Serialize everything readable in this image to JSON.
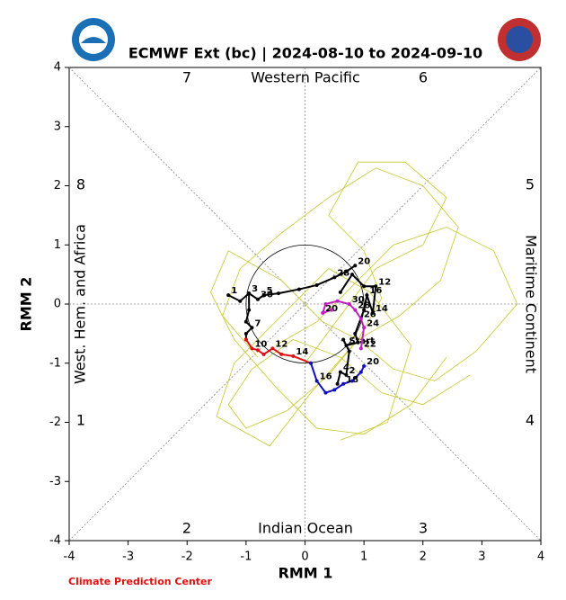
{
  "chart_data": {
    "type": "line",
    "title": "ECMWF Ext (bc) | 2024-08-10 to 2024-09-10",
    "x_label": "RMM 1",
    "y_label": "RMM 2",
    "xlim": [
      -4,
      4
    ],
    "ylim": [
      -4,
      4
    ],
    "xticks": [
      -4,
      -3,
      -2,
      -1,
      0,
      1,
      2,
      3,
      4
    ],
    "yticks": [
      -4,
      -3,
      -2,
      -1,
      0,
      1,
      2,
      3,
      4
    ],
    "phases": [
      "1",
      "2",
      "3",
      "4",
      "5",
      "6",
      "7",
      "8"
    ],
    "regions": [
      "Western Pacific",
      "Indian Ocean",
      "West. Hem. and Africa",
      "Maritime Continent"
    ],
    "credit": "Climate Prediction Center",
    "series": [
      {
        "color": "#c8c828",
        "x": [
          0.9,
          1.6,
          2.3,
          2.6,
          2.0,
          1.2,
          0.4,
          -0.4,
          -1.1,
          -1.4,
          -0.8
        ],
        "values": [
          -0.6,
          -0.2,
          0.4,
          1.3,
          2.0,
          2.3,
          1.8,
          1.2,
          0.6,
          -0.2,
          -0.9
        ],
        "labels": [
          null,
          null,
          null,
          null,
          null,
          null,
          null,
          null,
          null,
          null,
          null
        ]
      },
      {
        "color": "#c8c828",
        "x": [
          0.9,
          0.4,
          -0.3,
          -1.0,
          -1.3,
          -0.9,
          -0.2,
          0.6,
          1.3,
          2.0,
          2.8
        ],
        "values": [
          -0.6,
          -1.2,
          -1.8,
          -2.1,
          -1.7,
          -1.1,
          -0.6,
          -0.9,
          -1.5,
          -1.7,
          -1.2
        ],
        "labels": [
          null,
          null,
          null,
          null,
          null,
          null,
          null,
          null,
          null,
          null,
          null
        ]
      },
      {
        "color": "#c8c828",
        "x": [
          0.9,
          1.5,
          2.2,
          2.9,
          3.6,
          3.2,
          2.4,
          1.5,
          0.8,
          0.2,
          -0.5
        ],
        "values": [
          -0.6,
          -1.1,
          -1.3,
          -0.8,
          0.0,
          0.9,
          1.3,
          1.0,
          0.3,
          -0.3,
          -0.7
        ],
        "labels": [
          null,
          null,
          null,
          null,
          null,
          null,
          null,
          null,
          null,
          null,
          null
        ]
      },
      {
        "color": "#c8c828",
        "x": [
          0.9,
          0.3,
          -0.4,
          -1.3,
          -1.6,
          -1.2,
          -0.5,
          0.2,
          1.0,
          1.8,
          2.4
        ],
        "values": [
          -0.6,
          -0.3,
          0.4,
          0.9,
          0.2,
          -0.6,
          -1.4,
          -2.1,
          -2.2,
          -1.7,
          -0.9
        ],
        "labels": [
          null,
          null,
          null,
          null,
          null,
          null,
          null,
          null,
          null,
          null,
          null
        ]
      },
      {
        "color": "#c8c828",
        "x": [
          0.9,
          1.3,
          1.0,
          0.4,
          0.9,
          1.7,
          2.4,
          2.0,
          1.2,
          0.6,
          0.0
        ],
        "values": [
          -0.6,
          0.1,
          0.9,
          1.5,
          2.4,
          2.4,
          1.8,
          1.0,
          0.6,
          -0.2,
          -1.0
        ],
        "labels": [
          null,
          null,
          null,
          null,
          null,
          null,
          null,
          null,
          null,
          null,
          null
        ]
      },
      {
        "color": "#c8c828",
        "x": [
          0.9,
          0.1,
          -0.6,
          -1.5,
          -1.2,
          -0.4,
          0.4,
          1.1,
          1.8,
          1.4,
          0.6
        ],
        "values": [
          -0.6,
          -1.5,
          -2.4,
          -1.9,
          -1.0,
          -0.2,
          0.6,
          0.2,
          -0.7,
          -2.0,
          -2.3
        ],
        "labels": [
          null,
          null,
          null,
          null,
          null,
          null,
          null,
          null,
          null,
          null,
          null
        ]
      },
      {
        "color": "#000000",
        "x": [
          -1.3,
          -1.1,
          -0.95,
          -0.8,
          -0.7,
          -0.45,
          -0.1,
          0.2,
          0.5,
          0.7,
          0.85
        ],
        "values": [
          0.15,
          0.05,
          0.18,
          0.08,
          0.15,
          0.18,
          0.25,
          0.32,
          0.45,
          0.55,
          0.65
        ],
        "labels": [
          "1",
          null,
          "3",
          "30",
          "5",
          null,
          null,
          null,
          "28",
          null,
          "20"
        ]
      },
      {
        "color": "#000000",
        "x": [
          -0.95,
          -0.95,
          -1.0,
          -0.9,
          -1.0,
          -1.0
        ],
        "values": [
          0.18,
          -0.1,
          -0.3,
          -0.4,
          -0.5,
          -0.6
        ],
        "labels": [
          null,
          null,
          null,
          "7",
          null,
          null
        ]
      },
      {
        "color": "#e01010",
        "x": [
          -1.0,
          -0.9,
          -0.8,
          -0.7,
          -0.55,
          -0.4,
          -0.2,
          0.1
        ],
        "values": [
          -0.6,
          -0.75,
          -0.78,
          -0.85,
          -0.75,
          -0.85,
          -0.88,
          -1.0
        ],
        "labels": [
          null,
          "10",
          null,
          null,
          "12",
          null,
          "14",
          null
        ]
      },
      {
        "color": "#1010c0",
        "x": [
          0.1,
          0.2,
          0.35,
          0.5,
          0.65,
          0.8,
          0.95,
          1.0
        ],
        "values": [
          -1.0,
          -1.3,
          -1.5,
          -1.45,
          -1.35,
          -1.3,
          -1.15,
          -1.05
        ],
        "labels": [
          null,
          "16",
          null,
          null,
          "18",
          null,
          null,
          "20"
        ]
      },
      {
        "color": "#000000",
        "x": [
          0.55,
          0.6,
          0.7,
          0.75,
          0.65,
          0.7,
          0.9,
          0.85,
          1.0,
          1.05,
          1.15,
          1.2,
          1.0,
          0.8,
          0.6
        ],
        "values": [
          -1.35,
          -1.15,
          -1.2,
          -0.8,
          -0.6,
          -0.7,
          -0.65,
          -0.5,
          -0.1,
          0.15,
          -0.15,
          0.3,
          0.3,
          0.5,
          0.2
        ],
        "labels": [
          null,
          "4",
          "2",
          null,
          null,
          "Start",
          null,
          null,
          null,
          "16",
          "14",
          "12",
          null,
          null,
          null
        ]
      },
      {
        "color": "#c020c0",
        "x": [
          0.95,
          1.0,
          0.95,
          0.85,
          0.75,
          0.55,
          0.35,
          0.3,
          0.45
        ],
        "values": [
          -0.75,
          -0.4,
          -0.25,
          -0.1,
          0.0,
          0.05,
          0.0,
          -0.15,
          -0.1
        ],
        "labels": [
          "22",
          "24",
          "26",
          "28",
          "30",
          null,
          null,
          "20",
          null
        ]
      }
    ]
  }
}
